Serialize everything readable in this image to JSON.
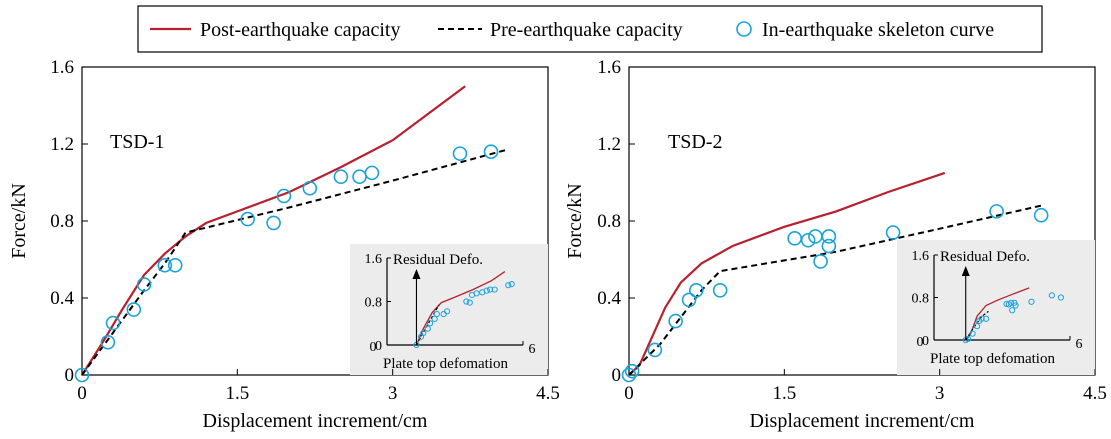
{
  "colors": {
    "post": "#b7202e",
    "pre": "#000000",
    "skeleton": "#1aa3d9",
    "inset_bg": "#ececec"
  },
  "legend": {
    "post_label": "Post-earthquake capacity",
    "pre_label": "Pre-earthquake capacity",
    "skeleton_label": "In-earthquake skeleton curve"
  },
  "chart_data": [
    {
      "type": "line",
      "title": "TSD-1",
      "xlabel": "Displacement increment/cm",
      "ylabel": "Force/kN",
      "xlim": [
        0,
        4.5
      ],
      "ylim": [
        0,
        1.6
      ],
      "xticks": [
        "0",
        "1.5",
        "3",
        "4.5"
      ],
      "yticks": [
        "0",
        "0.4",
        "0.8",
        "1.2",
        "1.6"
      ],
      "series": [
        {
          "name": "Post-earthquake capacity",
          "style": "solid",
          "x": [
            0,
            0.2,
            0.4,
            0.6,
            0.8,
            1.0,
            1.2,
            1.5,
            2.0,
            2.5,
            3.0,
            3.4,
            3.7
          ],
          "y": [
            0,
            0.17,
            0.35,
            0.52,
            0.63,
            0.72,
            0.79,
            0.85,
            0.95,
            1.08,
            1.22,
            1.38,
            1.5
          ]
        },
        {
          "name": "Pre-earthquake capacity",
          "style": "dashed",
          "x": [
            0,
            0.3,
            0.6,
            0.8,
            1.0,
            2.0,
            3.0,
            4.1
          ],
          "y": [
            0,
            0.22,
            0.44,
            0.58,
            0.74,
            0.87,
            1.01,
            1.17
          ]
        },
        {
          "name": "In-earthquake skeleton curve",
          "style": "circles",
          "x": [
            0,
            0.25,
            0.3,
            0.5,
            0.6,
            0.8,
            0.9,
            1.6,
            1.85,
            1.95,
            2.2,
            2.5,
            2.68,
            2.8,
            3.65,
            3.95
          ],
          "y": [
            0,
            0.17,
            0.27,
            0.34,
            0.47,
            0.57,
            0.57,
            0.81,
            0.79,
            0.93,
            0.97,
            1.03,
            1.03,
            1.05,
            1.15,
            1.16
          ]
        }
      ],
      "inset": {
        "title": "Residual Defo.",
        "xlabel": "Plate top defomation",
        "xlim": [
          0,
          6
        ],
        "ylim": [
          0,
          1.6
        ],
        "xticks": [
          "0",
          "6"
        ],
        "yticks": [
          "0",
          "0.8",
          "1.6"
        ],
        "series": [
          {
            "name": "Post-earthquake capacity",
            "style": "solid",
            "x": [
              1.3,
              1.6,
              2.0,
              2.4,
              3.0,
              3.8,
              4.6,
              5.2
            ],
            "y": [
              0,
              0.3,
              0.6,
              0.78,
              0.88,
              1.02,
              1.18,
              1.35
            ]
          },
          {
            "name": "Pre-earthquake capacity",
            "style": "dashed",
            "x": [
              1.3,
              1.7,
              2.1,
              2.3
            ],
            "y": [
              0,
              0.3,
              0.6,
              0.74
            ]
          },
          {
            "name": "In-earthquake skeleton curve",
            "style": "circles",
            "x": [
              1.3,
              1.5,
              1.6,
              1.8,
              1.9,
              2.1,
              2.2,
              2.5,
              2.65,
              3.5,
              3.65,
              3.75,
              3.95,
              4.2,
              4.4,
              4.55,
              4.75,
              5.35,
              5.5
            ],
            "y": [
              0,
              0.15,
              0.22,
              0.3,
              0.4,
              0.48,
              0.57,
              0.57,
              0.62,
              0.8,
              0.78,
              0.92,
              0.95,
              0.97,
              1.0,
              1.02,
              1.02,
              1.1,
              1.12
            ]
          }
        ]
      }
    },
    {
      "type": "line",
      "title": "TSD-2",
      "xlabel": "Displacement increment/cm",
      "ylabel": "Force/kN",
      "xlim": [
        0,
        4.5
      ],
      "ylim": [
        0,
        1.6
      ],
      "xticks": [
        "0",
        "1.5",
        "3",
        "4.5"
      ],
      "yticks": [
        "0",
        "0.4",
        "0.8",
        "1.2",
        "1.6"
      ],
      "series": [
        {
          "name": "Post-earthquake capacity",
          "style": "solid",
          "x": [
            0,
            0.1,
            0.2,
            0.35,
            0.5,
            0.7,
            1.0,
            1.5,
            2.0,
            2.5,
            3.05
          ],
          "y": [
            0,
            0.05,
            0.17,
            0.35,
            0.48,
            0.58,
            0.67,
            0.77,
            0.85,
            0.95,
            1.05
          ]
        },
        {
          "name": "Pre-earthquake capacity",
          "style": "dashed",
          "x": [
            0,
            0.15,
            0.3,
            0.5,
            0.7,
            0.88,
            2.0,
            3.0,
            3.98
          ],
          "y": [
            0,
            0.08,
            0.16,
            0.3,
            0.44,
            0.54,
            0.64,
            0.76,
            0.88
          ]
        },
        {
          "name": "In-earthquake skeleton curve",
          "style": "circles",
          "x": [
            0,
            0.03,
            0.25,
            0.45,
            0.58,
            0.65,
            0.88,
            1.6,
            1.73,
            1.8,
            1.85,
            1.93,
            1.93,
            2.55,
            3.55,
            3.98
          ],
          "y": [
            0,
            0.02,
            0.13,
            0.28,
            0.39,
            0.44,
            0.44,
            0.71,
            0.7,
            0.72,
            0.59,
            0.72,
            0.67,
            0.74,
            0.85,
            0.83
          ]
        }
      ],
      "inset": {
        "title": "Residual Defo.",
        "xlabel": "Plate top defomation",
        "xlim": [
          0,
          6
        ],
        "ylim": [
          0,
          1.6
        ],
        "xticks": [
          "0",
          "6"
        ],
        "yticks": [
          "0",
          "0.8",
          "1.6"
        ],
        "series": [
          {
            "name": "Post-earthquake capacity",
            "style": "solid",
            "x": [
              1.4,
              1.6,
              1.9,
              2.3,
              2.8,
              3.4,
              4.2
            ],
            "y": [
              0,
              0.1,
              0.45,
              0.65,
              0.75,
              0.85,
              0.98
            ]
          },
          {
            "name": "Pre-earthquake capacity",
            "style": "dashed",
            "x": [
              1.4,
              1.7,
              2.1,
              2.4
            ],
            "y": [
              0,
              0.2,
              0.44,
              0.54
            ]
          },
          {
            "name": "In-earthquake skeleton curve",
            "style": "circles",
            "x": [
              1.4,
              1.5,
              1.7,
              1.9,
              2.0,
              2.1,
              2.3,
              3.2,
              3.3,
              3.4,
              3.45,
              3.55,
              3.6,
              4.3,
              5.2,
              5.6
            ],
            "y": [
              0,
              0.02,
              0.12,
              0.26,
              0.36,
              0.4,
              0.4,
              0.68,
              0.67,
              0.7,
              0.56,
              0.7,
              0.65,
              0.72,
              0.84,
              0.8
            ]
          }
        ]
      }
    }
  ]
}
